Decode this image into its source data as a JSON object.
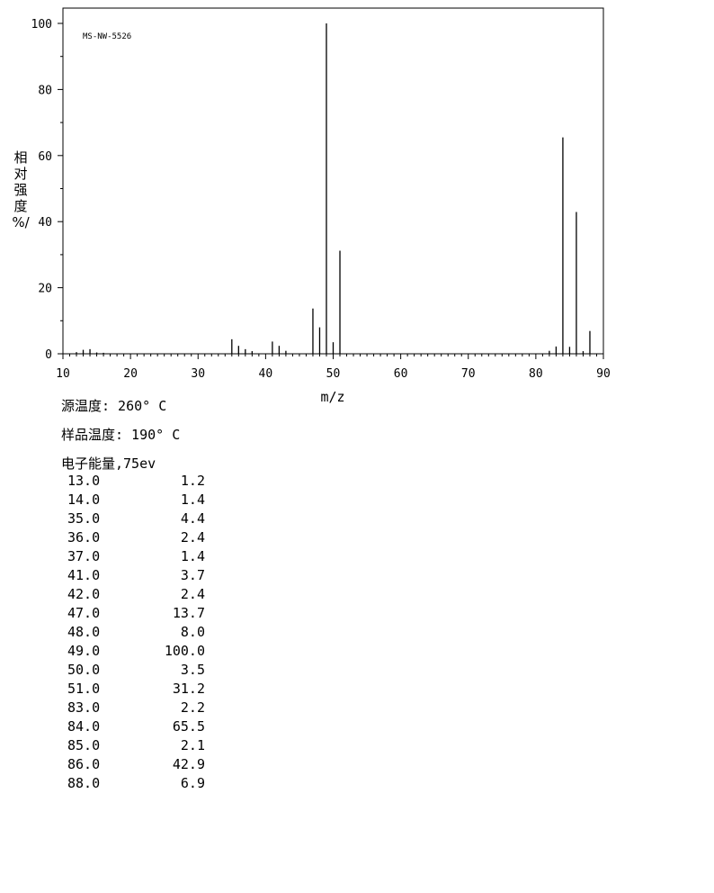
{
  "chart_data": {
    "type": "bar",
    "annotation": "MS-NW-5526",
    "xlabel": "m/z",
    "ylabel_chars": [
      "相",
      "对",
      "强",
      "度",
      "%/"
    ],
    "xlim": [
      10,
      90
    ],
    "ylim": [
      0,
      100
    ],
    "xticks": [
      10,
      20,
      30,
      40,
      50,
      60,
      70,
      80,
      90
    ],
    "yticks": [
      0,
      20,
      40,
      60,
      80,
      100
    ],
    "peaks": [
      {
        "x": 12,
        "y": 0.5
      },
      {
        "x": 13,
        "y": 1.2
      },
      {
        "x": 14,
        "y": 1.4
      },
      {
        "x": 15,
        "y": 0.4
      },
      {
        "x": 16,
        "y": 0.3
      },
      {
        "x": 35,
        "y": 4.4
      },
      {
        "x": 36,
        "y": 2.4
      },
      {
        "x": 37,
        "y": 1.4
      },
      {
        "x": 38,
        "y": 0.8
      },
      {
        "x": 41,
        "y": 3.7
      },
      {
        "x": 42,
        "y": 2.4
      },
      {
        "x": 43,
        "y": 0.9
      },
      {
        "x": 47,
        "y": 13.7
      },
      {
        "x": 48,
        "y": 8.0
      },
      {
        "x": 49,
        "y": 100.0
      },
      {
        "x": 50,
        "y": 3.5
      },
      {
        "x": 51,
        "y": 31.2
      },
      {
        "x": 82,
        "y": 0.9
      },
      {
        "x": 83,
        "y": 2.2
      },
      {
        "x": 84,
        "y": 65.5
      },
      {
        "x": 85,
        "y": 2.1
      },
      {
        "x": 86,
        "y": 42.9
      },
      {
        "x": 87,
        "y": 0.8
      },
      {
        "x": 88,
        "y": 6.9
      }
    ]
  },
  "conditions": {
    "source_temp": "源温度: 260° C",
    "sample_temp": "样品温度: 190° C",
    "electron_energy": "电子能量,75ev"
  },
  "peak_table": [
    {
      "mz": "13.0",
      "intensity": "1.2"
    },
    {
      "mz": "14.0",
      "intensity": "1.4"
    },
    {
      "mz": "35.0",
      "intensity": "4.4"
    },
    {
      "mz": "36.0",
      "intensity": "2.4"
    },
    {
      "mz": "37.0",
      "intensity": "1.4"
    },
    {
      "mz": "41.0",
      "intensity": "3.7"
    },
    {
      "mz": "42.0",
      "intensity": "2.4"
    },
    {
      "mz": "47.0",
      "intensity": "13.7"
    },
    {
      "mz": "48.0",
      "intensity": "8.0"
    },
    {
      "mz": "49.0",
      "intensity": "100.0"
    },
    {
      "mz": "50.0",
      "intensity": "3.5"
    },
    {
      "mz": "51.0",
      "intensity": "31.2"
    },
    {
      "mz": "83.0",
      "intensity": "2.2"
    },
    {
      "mz": "84.0",
      "intensity": "65.5"
    },
    {
      "mz": "85.0",
      "intensity": "2.1"
    },
    {
      "mz": "86.0",
      "intensity": "42.9"
    },
    {
      "mz": "88.0",
      "intensity": "6.9"
    }
  ]
}
